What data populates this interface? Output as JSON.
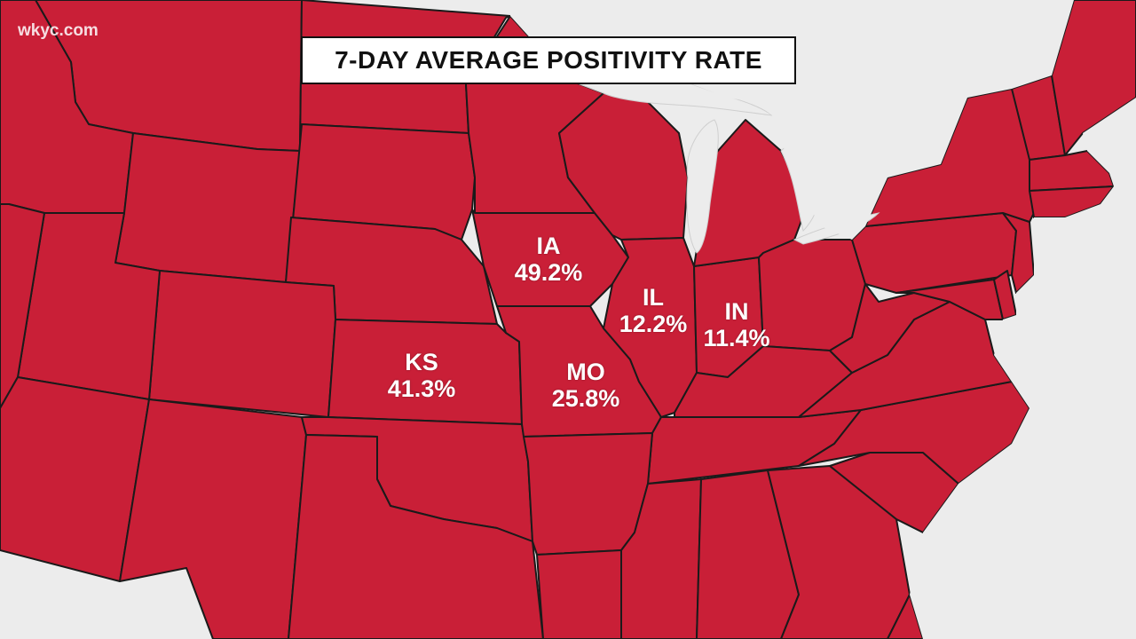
{
  "watermark": "wkyc.com",
  "title": "7-DAY AVERAGE POSITIVITY RATE",
  "colors": {
    "state_fill": "#c91f37",
    "background": "#ececec",
    "border": "#1a1a1a"
  },
  "state_labels": [
    {
      "abbr": "IA",
      "rate": "49.2%"
    },
    {
      "abbr": "IL",
      "rate": "12.2%"
    },
    {
      "abbr": "IN",
      "rate": "11.4%"
    },
    {
      "abbr": "KS",
      "rate": "41.3%"
    },
    {
      "abbr": "MO",
      "rate": "25.8%"
    }
  ]
}
